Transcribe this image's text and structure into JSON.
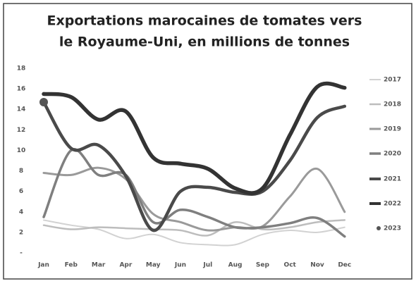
{
  "chart_data": {
    "type": "line",
    "title": [
      "Exportations marocaines de tomates vers",
      "le Royaume-Uni, en millions de tonnes"
    ],
    "categories": [
      "Jan",
      "Feb",
      "Mar",
      "Apr",
      "May",
      "Jun",
      "Jul",
      "Aug",
      "Sep",
      "Oct",
      "Nov",
      "Dec"
    ],
    "ylim": [
      0,
      18
    ],
    "yticks": [
      {
        "value": 0,
        "label": "-"
      },
      2,
      4,
      6,
      8,
      10,
      12,
      14,
      16,
      18
    ],
    "grid": false,
    "legend": "right",
    "series": [
      {
        "name": "2017",
        "color": "#d2d2d2",
        "width": 2,
        "values": [
          3.2,
          2.7,
          2.3,
          1.4,
          1.8,
          1.0,
          0.8,
          0.8,
          1.8,
          2.2,
          2.0,
          2.5
        ]
      },
      {
        "name": "2018",
        "color": "#bdbdbd",
        "width": 2.5,
        "values": [
          2.7,
          2.3,
          2.5,
          2.4,
          2.3,
          2.2,
          1.7,
          3.0,
          2.3,
          2.5,
          3.0,
          3.2
        ]
      },
      {
        "name": "2019",
        "color": "#9a9a9a",
        "width": 3,
        "values": [
          7.8,
          7.6,
          8.3,
          7.2,
          3.8,
          3.0,
          2.2,
          2.5,
          2.6,
          5.5,
          8.2,
          4.0
        ]
      },
      {
        "name": "2020",
        "color": "#7f7f7f",
        "width": 3.5,
        "values": [
          3.5,
          10.0,
          7.6,
          7.6,
          3.0,
          4.2,
          3.5,
          2.5,
          2.5,
          2.9,
          3.4,
          1.6
        ]
      },
      {
        "name": "2021",
        "color": "#4a4a4a",
        "width": 4.5,
        "values": [
          14.7,
          10.2,
          10.5,
          7.5,
          2.2,
          6.0,
          6.4,
          5.9,
          6.0,
          9.0,
          13.2,
          14.3
        ]
      },
      {
        "name": "2022",
        "color": "#333333",
        "width": 5.5,
        "values": [
          15.5,
          15.2,
          13.0,
          13.8,
          9.3,
          8.7,
          8.2,
          6.3,
          6.3,
          11.5,
          16.2,
          16.1
        ]
      },
      {
        "name": "2023",
        "color": "#555555",
        "width": 0,
        "values": [
          14.7,
          null,
          null,
          null,
          null,
          null,
          null,
          null,
          null,
          null,
          null,
          null
        ]
      }
    ]
  }
}
